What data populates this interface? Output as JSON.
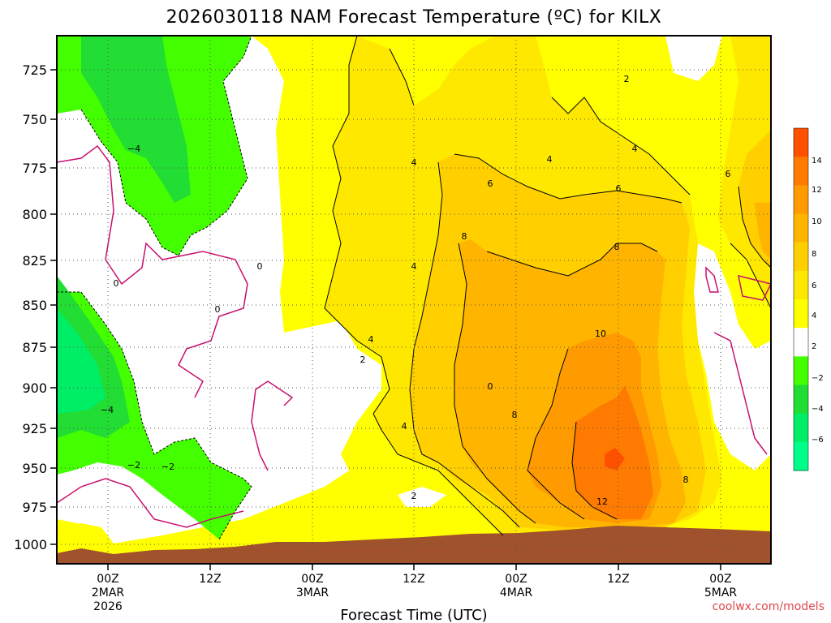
{
  "chart_data": {
    "type": "heatmap",
    "title": "2026030118 NAM Forecast Temperature (ºC) for KILX",
    "xlabel": "Forecast Time (UTC)",
    "credit": "coolwx.com/models",
    "y_ticks": [
      "725",
      "750",
      "775",
      "800",
      "825",
      "850",
      "875",
      "900",
      "925",
      "950",
      "975",
      "1000"
    ],
    "x_ticks": [
      {
        "line1": "00Z",
        "line2": "2MAR",
        "line3": "2026"
      },
      {
        "line1": "12Z",
        "line2": "",
        "line3": ""
      },
      {
        "line1": "00Z",
        "line2": "3MAR",
        "line3": ""
      },
      {
        "line1": "12Z",
        "line2": "",
        "line3": ""
      },
      {
        "line1": "00Z",
        "line2": "4MAR",
        "line3": ""
      },
      {
        "line1": "12Z",
        "line2": "",
        "line3": ""
      },
      {
        "line1": "00Z",
        "line2": "5MAR",
        "line3": ""
      }
    ],
    "colorbar": {
      "labels": [
        "14",
        "12",
        "10",
        "8",
        "6",
        "4",
        "2",
        "−2",
        "−4",
        "−6"
      ],
      "colors": [
        "#ff5000",
        "#ff7a00",
        "#ff9a00",
        "#ffb400",
        "#ffcf00",
        "#ffe800",
        "#ffff00",
        "#ffffff",
        "#44ff00",
        "#22dd33",
        "#00ee66",
        "#00ff88"
      ]
    },
    "contour_labels": [
      "2",
      "4",
      "6",
      "8",
      "10",
      "12",
      "0",
      "−2",
      "−4"
    ],
    "grid": true
  }
}
